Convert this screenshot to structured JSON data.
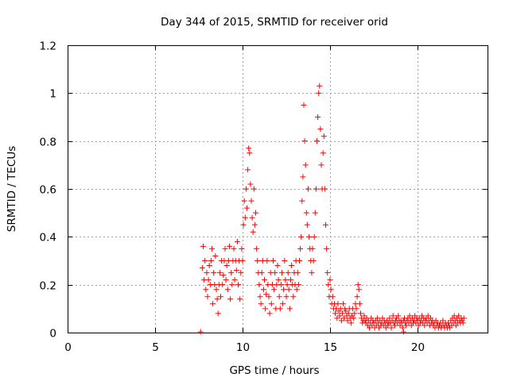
{
  "chart_data": {
    "type": "scatter",
    "title": "Day 344 of 2015, SRMTID for receiver orid",
    "xlabel": "GPS time / hours",
    "ylabel": "SRMTID / TECUs",
    "xlim": [
      0,
      24
    ],
    "ylim": [
      0,
      1.2
    ],
    "xticks": [
      0,
      5,
      10,
      15,
      20
    ],
    "xtick_labels": [
      "0",
      "5",
      "10",
      "15",
      "20"
    ],
    "yticks": [
      0,
      0.2,
      0.4,
      0.6,
      0.8,
      1,
      1.2
    ],
    "ytick_labels": [
      "0",
      "0.2",
      "0.4",
      "0.6",
      "0.8",
      "1",
      "1.2"
    ],
    "grid": true,
    "marker": "plus",
    "color": "#ff0000",
    "series": [
      {
        "name": "SRMTID",
        "points": [
          [
            7.7,
            0.27
          ],
          [
            7.75,
            0.36
          ],
          [
            7.8,
            0.22
          ],
          [
            7.85,
            0.3
          ],
          [
            7.9,
            0.18
          ],
          [
            7.95,
            0.25
          ],
          [
            8.0,
            0.15
          ],
          [
            8.05,
            0.22
          ],
          [
            8.1,
            0.28
          ],
          [
            8.15,
            0.2
          ],
          [
            8.2,
            0.3
          ],
          [
            8.25,
            0.35
          ],
          [
            8.3,
            0.12
          ],
          [
            8.35,
            0.25
          ],
          [
            8.4,
            0.2
          ],
          [
            8.45,
            0.32
          ],
          [
            8.5,
            0.18
          ],
          [
            8.55,
            0.14
          ],
          [
            8.6,
            0.08
          ],
          [
            8.65,
            0.2
          ],
          [
            8.7,
            0.25
          ],
          [
            8.75,
            0.15
          ],
          [
            8.8,
            0.3
          ],
          [
            8.85,
            0.2
          ],
          [
            8.9,
            0.24
          ],
          [
            8.95,
            0.3
          ],
          [
            9.0,
            0.35
          ],
          [
            9.05,
            0.22
          ],
          [
            9.1,
            0.28
          ],
          [
            9.15,
            0.18
          ],
          [
            9.2,
            0.3
          ],
          [
            9.25,
            0.36
          ],
          [
            9.3,
            0.14
          ],
          [
            9.35,
            0.25
          ],
          [
            9.4,
            0.2
          ],
          [
            9.45,
            0.3
          ],
          [
            9.5,
            0.35
          ],
          [
            9.55,
            0.22
          ],
          [
            9.6,
            0.3
          ],
          [
            9.65,
            0.26
          ],
          [
            9.7,
            0.38
          ],
          [
            9.75,
            0.2
          ],
          [
            9.8,
            0.3
          ],
          [
            9.85,
            0.14
          ],
          [
            9.9,
            0.25
          ],
          [
            9.95,
            0.35
          ],
          [
            10.0,
            0.3
          ],
          [
            10.05,
            0.45
          ],
          [
            10.1,
            0.55
          ],
          [
            10.15,
            0.48
          ],
          [
            10.2,
            0.6
          ],
          [
            10.25,
            0.52
          ],
          [
            10.3,
            0.68
          ],
          [
            10.35,
            0.77
          ],
          [
            10.4,
            0.75
          ],
          [
            10.45,
            0.62
          ],
          [
            10.5,
            0.55
          ],
          [
            10.55,
            0.48
          ],
          [
            10.6,
            0.42
          ],
          [
            10.65,
            0.6
          ],
          [
            10.7,
            0.45
          ],
          [
            10.75,
            0.5
          ],
          [
            10.8,
            0.35
          ],
          [
            10.85,
            0.3
          ],
          [
            10.9,
            0.25
          ],
          [
            10.95,
            0.2
          ],
          [
            11.0,
            0.15
          ],
          [
            11.05,
            0.12
          ],
          [
            11.1,
            0.25
          ],
          [
            11.15,
            0.3
          ],
          [
            11.2,
            0.18
          ],
          [
            11.25,
            0.22
          ],
          [
            11.3,
            0.1
          ],
          [
            11.35,
            0.16
          ],
          [
            11.4,
            0.3
          ],
          [
            11.45,
            0.2
          ],
          [
            11.5,
            0.15
          ],
          [
            11.55,
            0.08
          ],
          [
            11.6,
            0.25
          ],
          [
            11.65,
            0.12
          ],
          [
            11.7,
            0.2
          ],
          [
            11.75,
            0.3
          ],
          [
            11.8,
            0.18
          ],
          [
            11.85,
            0.25
          ],
          [
            11.9,
            0.1
          ],
          [
            11.95,
            0.2
          ],
          [
            12.0,
            0.28
          ],
          [
            12.05,
            0.22
          ],
          [
            12.1,
            0.15
          ],
          [
            12.15,
            0.1
          ],
          [
            12.2,
            0.2
          ],
          [
            12.25,
            0.25
          ],
          [
            12.3,
            0.12
          ],
          [
            12.35,
            0.18
          ],
          [
            12.4,
            0.3
          ],
          [
            12.45,
            0.22
          ],
          [
            12.5,
            0.15
          ],
          [
            12.55,
            0.2
          ],
          [
            12.6,
            0.25
          ],
          [
            12.65,
            0.18
          ],
          [
            12.7,
            0.1
          ],
          [
            12.75,
            0.22
          ],
          [
            12.8,
            0.28
          ],
          [
            12.85,
            0.2
          ],
          [
            12.9,
            0.15
          ],
          [
            12.95,
            0.25
          ],
          [
            13.0,
            0.2
          ],
          [
            13.05,
            0.3
          ],
          [
            13.1,
            0.18
          ],
          [
            13.15,
            0.25
          ],
          [
            13.2,
            0.2
          ],
          [
            13.25,
            0.3
          ],
          [
            13.3,
            0.35
          ],
          [
            13.35,
            0.4
          ],
          [
            13.4,
            0.55
          ],
          [
            13.45,
            0.65
          ],
          [
            13.5,
            0.95
          ],
          [
            13.55,
            0.8
          ],
          [
            13.6,
            0.7
          ],
          [
            13.65,
            0.5
          ],
          [
            13.7,
            0.45
          ],
          [
            13.75,
            0.6
          ],
          [
            13.8,
            0.4
          ],
          [
            13.85,
            0.35
          ],
          [
            13.9,
            0.3
          ],
          [
            13.95,
            0.25
          ],
          [
            14.0,
            0.35
          ],
          [
            14.05,
            0.3
          ],
          [
            14.1,
            0.4
          ],
          [
            14.15,
            0.5
          ],
          [
            14.2,
            0.6
          ],
          [
            14.25,
            0.8
          ],
          [
            14.3,
            0.9
          ],
          [
            14.35,
            1.0
          ],
          [
            14.4,
            1.03
          ],
          [
            14.45,
            0.85
          ],
          [
            14.5,
            0.7
          ],
          [
            14.55,
            0.6
          ],
          [
            14.6,
            0.75
          ],
          [
            14.65,
            0.82
          ],
          [
            14.7,
            0.6
          ],
          [
            14.75,
            0.45
          ],
          [
            14.8,
            0.35
          ],
          [
            14.85,
            0.25
          ],
          [
            14.9,
            0.2
          ],
          [
            14.95,
            0.15
          ],
          [
            15.0,
            0.22
          ],
          [
            15.05,
            0.18
          ],
          [
            15.1,
            0.12
          ],
          [
            15.15,
            0.15
          ],
          [
            15.2,
            0.1
          ],
          [
            15.25,
            0.12
          ],
          [
            15.3,
            0.08
          ],
          [
            15.35,
            0.1
          ],
          [
            15.4,
            0.06
          ],
          [
            15.45,
            0.12
          ],
          [
            15.5,
            0.09
          ],
          [
            15.55,
            0.07
          ],
          [
            15.6,
            0.1
          ],
          [
            15.65,
            0.05
          ],
          [
            15.7,
            0.08
          ],
          [
            15.75,
            0.12
          ],
          [
            15.8,
            0.06
          ],
          [
            15.85,
            0.1
          ],
          [
            15.9,
            0.09
          ],
          [
            15.95,
            0.07
          ],
          [
            16.0,
            0.05
          ],
          [
            16.05,
            0.08
          ],
          [
            16.1,
            0.1
          ],
          [
            16.15,
            0.06
          ],
          [
            16.2,
            0.04
          ],
          [
            16.25,
            0.07
          ],
          [
            16.3,
            0.1
          ],
          [
            16.35,
            0.06
          ],
          [
            16.4,
            0.08
          ],
          [
            16.45,
            0.12
          ],
          [
            16.5,
            0.1
          ],
          [
            16.55,
            0.15
          ],
          [
            16.6,
            0.2
          ],
          [
            16.65,
            0.18
          ],
          [
            16.7,
            0.12
          ],
          [
            16.75,
            0.08
          ],
          [
            16.8,
            0.06
          ],
          [
            16.85,
            0.04
          ],
          [
            16.9,
            0.05
          ],
          [
            16.95,
            0.07
          ],
          [
            17.0,
            0.05
          ],
          [
            17.05,
            0.04
          ],
          [
            17.1,
            0.06
          ],
          [
            17.15,
            0.03
          ],
          [
            17.2,
            0.05
          ],
          [
            17.25,
            0.02
          ],
          [
            17.3,
            0.04
          ],
          [
            17.35,
            0.06
          ],
          [
            17.4,
            0.03
          ],
          [
            17.45,
            0.05
          ],
          [
            17.5,
            0.04
          ],
          [
            17.55,
            0.02
          ],
          [
            17.6,
            0.05
          ],
          [
            17.65,
            0.03
          ],
          [
            17.7,
            0.06
          ],
          [
            17.75,
            0.04
          ],
          [
            17.8,
            0.02
          ],
          [
            17.85,
            0.05
          ],
          [
            17.9,
            0.03
          ],
          [
            17.95,
            0.04
          ],
          [
            18.0,
            0.06
          ],
          [
            18.05,
            0.03
          ],
          [
            18.1,
            0.05
          ],
          [
            18.15,
            0.04
          ],
          [
            18.2,
            0.02
          ],
          [
            18.25,
            0.05
          ],
          [
            18.3,
            0.03
          ],
          [
            18.35,
            0.04
          ],
          [
            18.4,
            0.06
          ],
          [
            18.45,
            0.04
          ],
          [
            18.5,
            0.02
          ],
          [
            18.55,
            0.05
          ],
          [
            18.6,
            0.07
          ],
          [
            18.65,
            0.04
          ],
          [
            18.7,
            0.03
          ],
          [
            18.75,
            0.05
          ],
          [
            18.8,
            0.06
          ],
          [
            18.85,
            0.04
          ],
          [
            18.9,
            0.07
          ],
          [
            18.95,
            0.05
          ],
          [
            19.0,
            0.03
          ],
          [
            19.05,
            0.05
          ],
          [
            19.1,
            0.04
          ],
          [
            19.15,
            0.02
          ],
          [
            19.2,
            0.05
          ],
          [
            19.25,
            0.06
          ],
          [
            19.3,
            0.04
          ],
          [
            19.35,
            0.03
          ],
          [
            19.4,
            0.05
          ],
          [
            19.45,
            0.06
          ],
          [
            19.5,
            0.04
          ],
          [
            19.55,
            0.07
          ],
          [
            19.6,
            0.05
          ],
          [
            19.65,
            0.03
          ],
          [
            19.7,
            0.06
          ],
          [
            19.75,
            0.04
          ],
          [
            19.8,
            0.05
          ],
          [
            19.85,
            0.07
          ],
          [
            19.9,
            0.04
          ],
          [
            19.95,
            0.06
          ],
          [
            20.0,
            0.05
          ],
          [
            20.05,
            0.03
          ],
          [
            20.1,
            0.06
          ],
          [
            20.15,
            0.04
          ],
          [
            20.2,
            0.05
          ],
          [
            20.25,
            0.07
          ],
          [
            20.3,
            0.04
          ],
          [
            20.35,
            0.06
          ],
          [
            20.4,
            0.03
          ],
          [
            20.45,
            0.05
          ],
          [
            20.5,
            0.06
          ],
          [
            20.55,
            0.04
          ],
          [
            20.6,
            0.07
          ],
          [
            20.65,
            0.05
          ],
          [
            20.7,
            0.03
          ],
          [
            20.75,
            0.06
          ],
          [
            20.8,
            0.04
          ],
          [
            20.85,
            0.05
          ],
          [
            20.9,
            0.03
          ],
          [
            20.95,
            0.04
          ],
          [
            21.0,
            0.02
          ],
          [
            21.05,
            0.05
          ],
          [
            21.1,
            0.03
          ],
          [
            21.15,
            0.04
          ],
          [
            21.2,
            0.02
          ],
          [
            21.25,
            0.03
          ],
          [
            21.3,
            0.04
          ],
          [
            21.35,
            0.02
          ],
          [
            21.4,
            0.03
          ],
          [
            21.45,
            0.05
          ],
          [
            21.5,
            0.03
          ],
          [
            21.55,
            0.02
          ],
          [
            21.6,
            0.04
          ],
          [
            21.65,
            0.03
          ],
          [
            21.7,
            0.02
          ],
          [
            21.75,
            0.04
          ],
          [
            21.8,
            0.03
          ],
          [
            21.85,
            0.02
          ],
          [
            21.9,
            0.05
          ],
          [
            21.95,
            0.03
          ],
          [
            22.0,
            0.06
          ],
          [
            22.05,
            0.04
          ],
          [
            22.1,
            0.07
          ],
          [
            22.15,
            0.05
          ],
          [
            22.2,
            0.03
          ],
          [
            22.25,
            0.06
          ],
          [
            22.3,
            0.04
          ],
          [
            22.35,
            0.07
          ],
          [
            22.4,
            0.05
          ],
          [
            22.45,
            0.04
          ],
          [
            22.5,
            0.06
          ],
          [
            22.55,
            0.05
          ],
          [
            22.6,
            0.04
          ],
          [
            22.65,
            0.06
          ],
          [
            7.6,
            0.0
          ],
          [
            19.2,
            0.0
          ]
        ]
      }
    ]
  }
}
